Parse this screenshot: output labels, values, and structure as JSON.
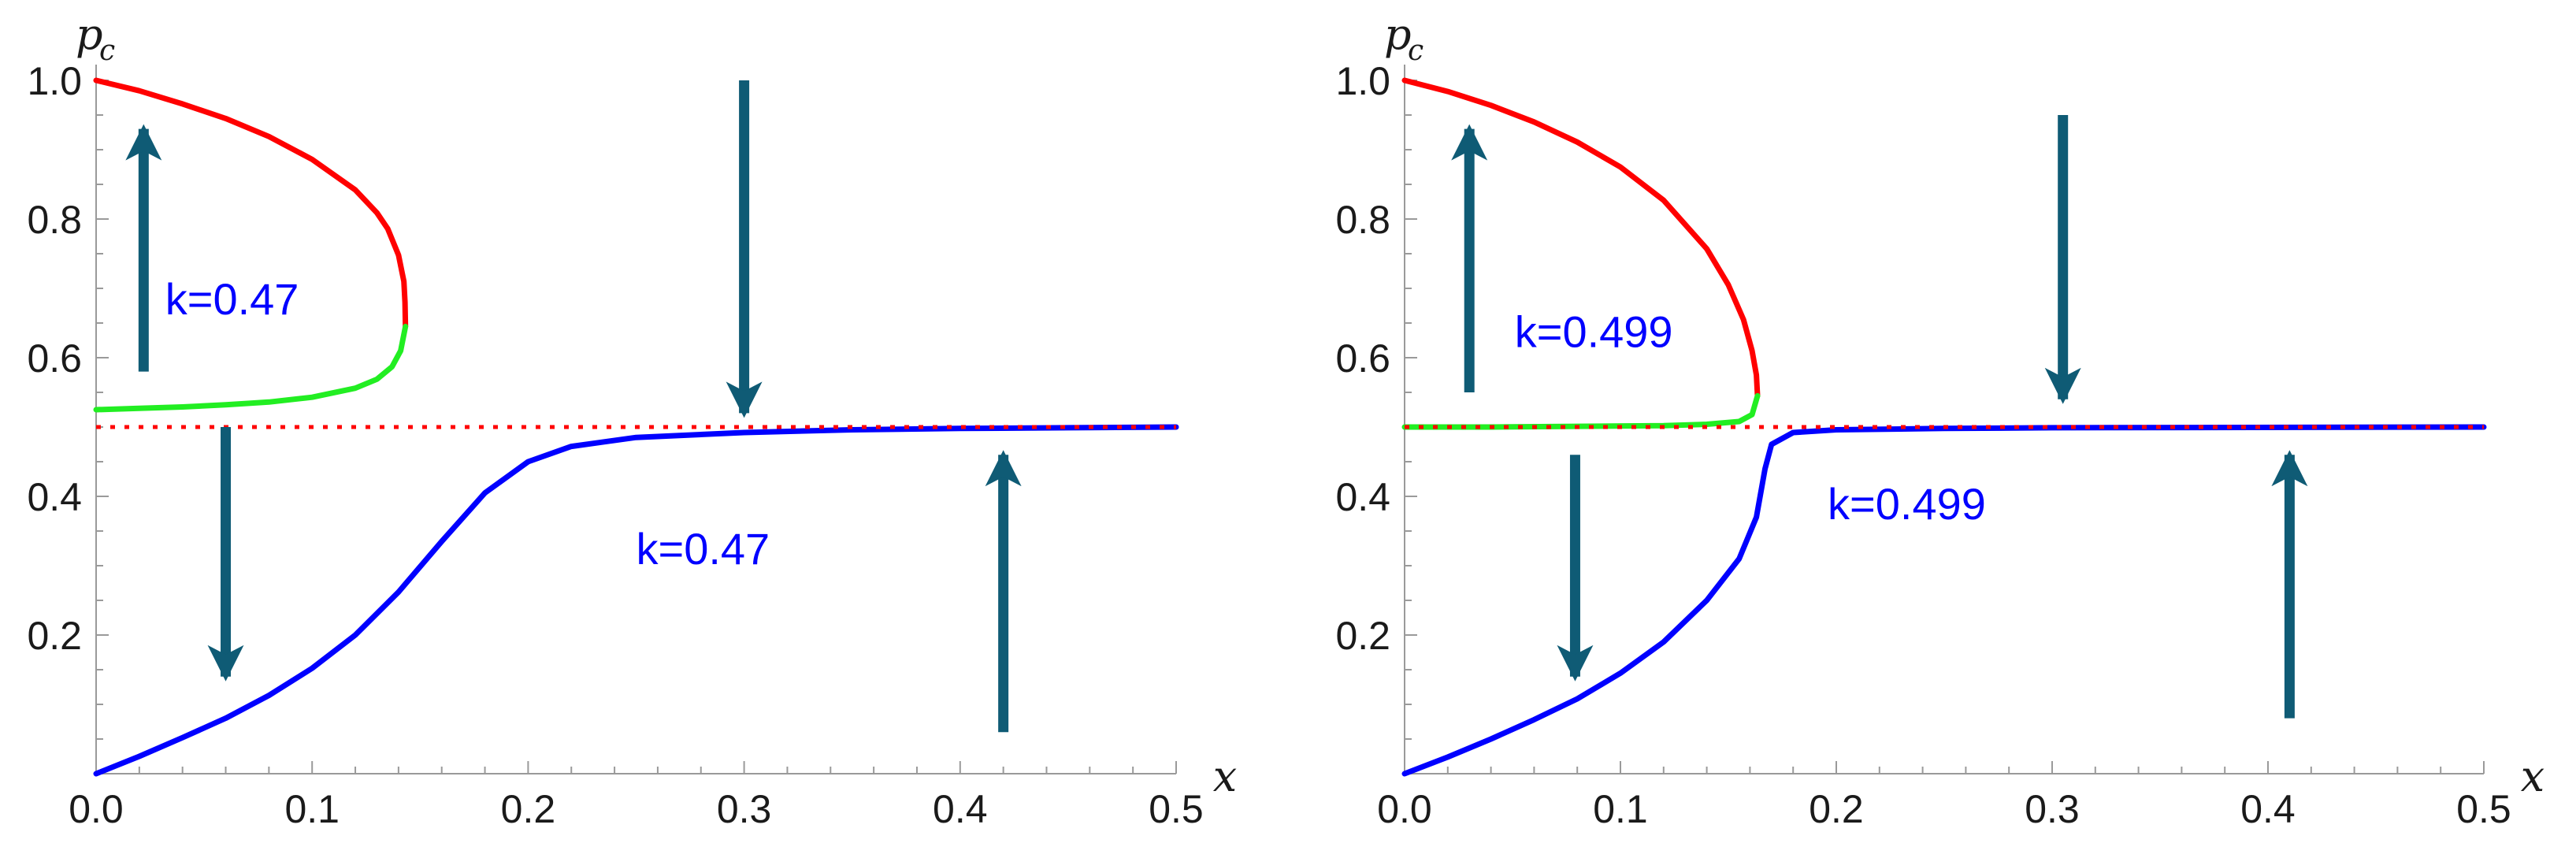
{
  "chart_data": [
    {
      "type": "line",
      "panel": "left",
      "title": "",
      "xlabel": "x",
      "ylabel": "p",
      "ylabel_sub": "c",
      "xlim": [
        0,
        0.5
      ],
      "ylim": [
        0,
        1.0
      ],
      "x_ticks": [
        0.0,
        0.1,
        0.2,
        0.3,
        0.4,
        0.5
      ],
      "x_tick_labels": [
        "0.0",
        "0.1",
        "0.2",
        "0.3",
        "0.4",
        "0.5"
      ],
      "y_ticks": [
        0.2,
        0.4,
        0.6,
        0.8,
        1.0
      ],
      "y_tick_labels": [
        "0.2",
        "0.4",
        "0.6",
        "0.8",
        "1.0"
      ],
      "grid": false,
      "series": [
        {
          "color": "#ff0000",
          "style": "solid",
          "points": [
            [
              0.0,
              1.0
            ],
            [
              0.02,
              0.985
            ],
            [
              0.04,
              0.966
            ],
            [
              0.06,
              0.945
            ],
            [
              0.08,
              0.919
            ],
            [
              0.1,
              0.886
            ],
            [
              0.12,
              0.842
            ],
            [
              0.13,
              0.809
            ],
            [
              0.135,
              0.786
            ],
            [
              0.14,
              0.748
            ],
            [
              0.1425,
              0.71
            ],
            [
              0.143,
              0.68
            ],
            [
              0.1432,
              0.645
            ]
          ]
        },
        {
          "color": "#22ee22",
          "style": "solid",
          "points": [
            [
              0.0,
              0.525
            ],
            [
              0.02,
              0.527
            ],
            [
              0.04,
              0.529
            ],
            [
              0.06,
              0.532
            ],
            [
              0.08,
              0.536
            ],
            [
              0.1,
              0.543
            ],
            [
              0.12,
              0.556
            ],
            [
              0.13,
              0.569
            ],
            [
              0.137,
              0.587
            ],
            [
              0.141,
              0.61
            ],
            [
              0.1432,
              0.645
            ]
          ]
        },
        {
          "color": "#0000ff",
          "style": "solid",
          "points": [
            [
              0.0,
              0.0
            ],
            [
              0.02,
              0.025
            ],
            [
              0.04,
              0.052
            ],
            [
              0.06,
              0.08
            ],
            [
              0.08,
              0.113
            ],
            [
              0.1,
              0.152
            ],
            [
              0.12,
              0.2
            ],
            [
              0.14,
              0.262
            ],
            [
              0.16,
              0.335
            ],
            [
              0.18,
              0.405
            ],
            [
              0.2,
              0.45
            ],
            [
              0.22,
              0.472
            ],
            [
              0.25,
              0.485
            ],
            [
              0.3,
              0.492
            ],
            [
              0.35,
              0.496
            ],
            [
              0.4,
              0.498
            ],
            [
              0.45,
              0.499
            ],
            [
              0.5,
              0.5
            ]
          ]
        },
        {
          "color": "#ff0000",
          "style": "dotted",
          "points": [
            [
              0.0,
              0.5
            ],
            [
              0.5,
              0.5
            ]
          ]
        }
      ],
      "arrows": [
        {
          "x": 0.022,
          "from": 0.58,
          "to": 0.93
        },
        {
          "x": 0.06,
          "from": 0.5,
          "to": 0.14
        },
        {
          "x": 0.3,
          "from": 1.0,
          "to": 0.52
        },
        {
          "x": 0.42,
          "from": 0.06,
          "to": 0.46
        }
      ],
      "annotations": [
        {
          "text": "k=0.47",
          "x": 0.032,
          "y": 0.685
        },
        {
          "text": "k=0.47",
          "x": 0.25,
          "y": 0.325
        }
      ]
    },
    {
      "type": "line",
      "panel": "right",
      "title": "",
      "xlabel": "x",
      "ylabel": "p",
      "ylabel_sub": "c",
      "xlim": [
        0,
        0.5
      ],
      "ylim": [
        0,
        1.0
      ],
      "x_ticks": [
        0.0,
        0.1,
        0.2,
        0.3,
        0.4,
        0.5
      ],
      "x_tick_labels": [
        "0.0",
        "0.1",
        "0.2",
        "0.3",
        "0.4",
        "0.5"
      ],
      "y_ticks": [
        0.2,
        0.4,
        0.6,
        0.8,
        1.0
      ],
      "y_tick_labels": [
        "0.2",
        "0.4",
        "0.6",
        "0.8",
        "1.0"
      ],
      "grid": false,
      "series": [
        {
          "color": "#ff0000",
          "style": "solid",
          "points": [
            [
              0.0,
              1.0
            ],
            [
              0.02,
              0.984
            ],
            [
              0.04,
              0.964
            ],
            [
              0.06,
              0.94
            ],
            [
              0.08,
              0.911
            ],
            [
              0.1,
              0.875
            ],
            [
              0.12,
              0.827
            ],
            [
              0.14,
              0.757
            ],
            [
              0.15,
              0.705
            ],
            [
              0.157,
              0.655
            ],
            [
              0.161,
              0.61
            ],
            [
              0.163,
              0.575
            ],
            [
              0.1635,
              0.545
            ]
          ]
        },
        {
          "color": "#22ee22",
          "style": "solid",
          "points": [
            [
              0.0,
              0.5
            ],
            [
              0.04,
              0.5
            ],
            [
              0.08,
              0.501
            ],
            [
              0.12,
              0.502
            ],
            [
              0.14,
              0.504
            ],
            [
              0.155,
              0.508
            ],
            [
              0.161,
              0.518
            ],
            [
              0.1635,
              0.545
            ]
          ]
        },
        {
          "color": "#0000ff",
          "style": "solid",
          "points": [
            [
              0.0,
              0.0
            ],
            [
              0.02,
              0.024
            ],
            [
              0.04,
              0.05
            ],
            [
              0.06,
              0.078
            ],
            [
              0.08,
              0.108
            ],
            [
              0.1,
              0.145
            ],
            [
              0.12,
              0.19
            ],
            [
              0.14,
              0.25
            ],
            [
              0.155,
              0.31
            ],
            [
              0.163,
              0.37
            ],
            [
              0.167,
              0.44
            ],
            [
              0.17,
              0.475
            ],
            [
              0.18,
              0.492
            ],
            [
              0.2,
              0.496
            ],
            [
              0.25,
              0.498
            ],
            [
              0.3,
              0.499
            ],
            [
              0.5,
              0.5
            ]
          ]
        },
        {
          "color": "#ff0000",
          "style": "dotted",
          "points": [
            [
              0.0,
              0.5
            ],
            [
              0.5,
              0.5
            ]
          ]
        }
      ],
      "arrows": [
        {
          "x": 0.03,
          "from": 0.55,
          "to": 0.93
        },
        {
          "x": 0.079,
          "from": 0.46,
          "to": 0.14
        },
        {
          "x": 0.305,
          "from": 0.95,
          "to": 0.54
        },
        {
          "x": 0.41,
          "from": 0.08,
          "to": 0.46
        }
      ],
      "annotations": [
        {
          "text": "k=0.499",
          "x": 0.051,
          "y": 0.638
        },
        {
          "text": "k=0.499",
          "x": 0.196,
          "y": 0.39
        }
      ]
    }
  ]
}
